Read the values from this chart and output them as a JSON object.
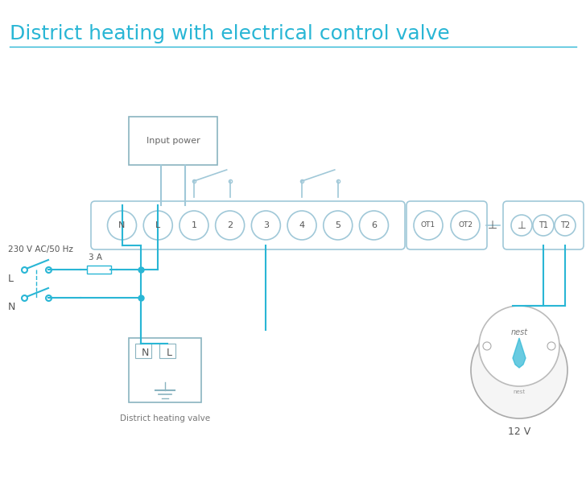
{
  "title": "District heating with electrical control valve",
  "title_color": "#29b6d5",
  "title_fontsize": 18,
  "bg_color": "#ffffff",
  "line_color": "#29b6d5",
  "component_color": "#a0c8d8",
  "terminal_labels": [
    "N",
    "L",
    "1",
    "2",
    "3",
    "4",
    "5",
    "6"
  ],
  "ot_labels": [
    "OT1",
    "OT2"
  ],
  "right_labels": [
    "⊥",
    "T1",
    "T2"
  ],
  "wire_color": "#29b6d5",
  "box_color": "#c0d8e0",
  "label_color": "#555555",
  "dark_label_color": "#444444"
}
